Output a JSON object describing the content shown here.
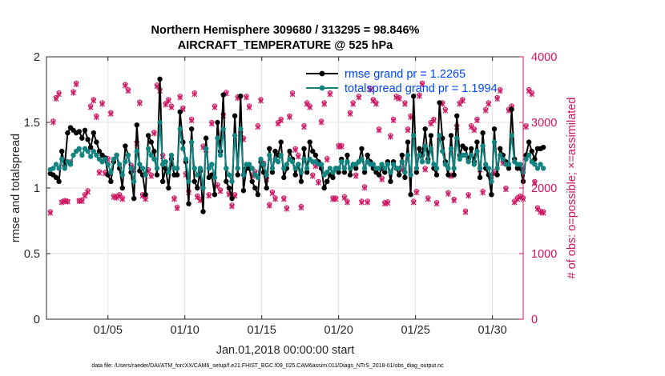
{
  "chart_data": {
    "type": "line",
    "title_line1": "Northern Hemisphere 309680 / 313295 = 98.846%",
    "title_line2": "AIRCRAFT_TEMPERATURE @ 525 hPa",
    "xlabel": "Jan.01,2018 00:00:00 start",
    "ylabel_left": "rmse and totalspread",
    "ylabel_right": "# of obs: o=possible; ×=assimilated",
    "footer": "data file: /Users/raeder/DAI/ATM_forcXX/CAM6_setup/f.e21.FHIST_BGC.f09_025.CAM6assim.011/Diags_NTrS_2018-01/obs_diag_output.nc",
    "xlim": [
      1.0,
      32.0
    ],
    "ylim_left": [
      0,
      2
    ],
    "ylim_right": [
      0,
      4000
    ],
    "x_ticks": [
      5,
      10,
      15,
      20,
      25,
      30
    ],
    "x_tick_labels": [
      "01/05",
      "01/10",
      "01/15",
      "01/20",
      "01/25",
      "01/30"
    ],
    "y_ticks_left": [
      0,
      0.5,
      1,
      1.5,
      2
    ],
    "y_tick_labels_left": [
      "0",
      "0.5",
      "1",
      "1.5",
      "2"
    ],
    "y_ticks_right": [
      0,
      1000,
      2000,
      3000,
      4000
    ],
    "y_tick_labels_right": [
      "0",
      "1000",
      "2000",
      "3000",
      "4000"
    ],
    "colors": {
      "rmse": "#000000",
      "spread": "#138380",
      "obs": "#cc1461",
      "legend_text": "#0046ff",
      "grid": "#e2e2e2"
    },
    "legend": [
      {
        "key": "rmse",
        "label": "rmse grand pr = 1.2265"
      },
      {
        "key": "spread",
        "label": "totalspread grand pr = 1.1994"
      }
    ],
    "series": [
      {
        "name": "rmse",
        "values": [
          1.11,
          1.1,
          1.08,
          1.05,
          1.28,
          1.17,
          1.42,
          1.46,
          1.44,
          1.42,
          1.43,
          1.38,
          1.44,
          1.37,
          1.31,
          1.42,
          1.35,
          1.28,
          1.25,
          1.23,
          1.1,
          1.05,
          1.2,
          1.25,
          1.15,
          1.0,
          1.32,
          1.25,
          1.12,
          0.92,
          1.48,
          1.13,
          1.1,
          0.95,
          1.4,
          1.35,
          1.28,
          1.1,
          1.83,
          1.05,
          1.15,
          1.0,
          1.22,
          1.1,
          1.1,
          1.58,
          1.35,
          1.2,
          0.88,
          1.45,
          1.05,
          1.0,
          1.13,
          0.82,
          1.38,
          1.08,
          1.1,
          0.95,
          1.5,
          1.28,
          1.71,
          1.05,
          1.0,
          0.92,
          1.55,
          1.1,
          1.7,
          0.98,
          1.15,
          1.15,
          1.05,
          1.0,
          0.95,
          1.2,
          1.12,
          1.0,
          1.3,
          1.12,
          1.28,
          1.25,
          1.35,
          1.08,
          1.15,
          1.28,
          1.22,
          1.1,
          1.18,
          1.05,
          1.3,
          1.12,
          1.35,
          1.28,
          1.25,
          1.2,
          1.15,
          1.0,
          1.05,
          1.1,
          1.08,
          1.15,
          1.12,
          1.22,
          1.12,
          1.25,
          1.1,
          1.18,
          1.15,
          1.2,
          1.3,
          1.12,
          1.25,
          1.2,
          1.15,
          1.12,
          1.1,
          1.15,
          1.12,
          1.2,
          1.05,
          1.2,
          1.15,
          1.1,
          1.25,
          1.08,
          1.35,
          0.95,
          1.7,
          1.12,
          1.3,
          1.25,
          1.45,
          1.22,
          1.4,
          1.15,
          1.1,
          1.65,
          1.38,
          1.2,
          1.1,
          1.4,
          1.1,
          1.55,
          1.25,
          1.32,
          1.3,
          1.22,
          1.3,
          1.2,
          1.35,
          1.08,
          1.42,
          1.15,
          1.1,
          0.95,
          1.45,
          1.1,
          1.3,
          1.25,
          1.2,
          1.15,
          1.6,
          1.22,
          1.15,
          1.15,
          1.05,
          1.25,
          1.35,
          1.28,
          1.22,
          1.3,
          1.3,
          1.31
        ]
      },
      {
        "name": "totalspread",
        "values": [
          1.14,
          1.15,
          1.18,
          1.15,
          1.22,
          1.15,
          1.2,
          1.18,
          1.25,
          1.28,
          1.3,
          1.25,
          1.3,
          1.28,
          1.24,
          1.28,
          1.25,
          1.22,
          1.2,
          1.22,
          1.18,
          1.12,
          1.22,
          1.25,
          1.18,
          1.1,
          1.2,
          1.25,
          1.15,
          1.05,
          1.28,
          1.18,
          1.15,
          1.1,
          1.3,
          1.25,
          1.22,
          1.15,
          1.5,
          1.18,
          1.2,
          1.12,
          1.25,
          1.15,
          1.15,
          1.45,
          1.3,
          1.22,
          1.05,
          1.35,
          1.15,
          1.1,
          1.15,
          1.0,
          1.3,
          1.15,
          1.18,
          1.08,
          1.38,
          1.25,
          1.45,
          1.15,
          1.1,
          1.05,
          1.4,
          1.15,
          1.45,
          1.1,
          1.18,
          1.18,
          1.15,
          1.1,
          1.08,
          1.22,
          1.18,
          1.1,
          1.25,
          1.15,
          1.22,
          1.2,
          1.25,
          1.15,
          1.18,
          1.22,
          1.2,
          1.15,
          1.18,
          1.12,
          1.22,
          1.15,
          1.22,
          1.2,
          1.2,
          1.18,
          1.18,
          1.1,
          1.12,
          1.15,
          1.12,
          1.15,
          1.15,
          1.2,
          1.15,
          1.2,
          1.15,
          1.18,
          1.18,
          1.2,
          1.22,
          1.15,
          1.2,
          1.18,
          1.18,
          1.15,
          1.15,
          1.18,
          1.15,
          1.18,
          1.12,
          1.18,
          1.15,
          1.15,
          1.2,
          1.12,
          1.25,
          1.1,
          1.4,
          1.15,
          1.25,
          1.2,
          1.32,
          1.2,
          1.3,
          1.18,
          1.15,
          1.4,
          1.28,
          1.18,
          1.15,
          1.3,
          1.15,
          1.38,
          1.22,
          1.25,
          1.25,
          1.2,
          1.25,
          1.18,
          1.28,
          1.15,
          1.32,
          1.18,
          1.15,
          1.05,
          1.35,
          1.15,
          1.25,
          1.22,
          1.18,
          1.18,
          1.4,
          1.2,
          1.18,
          1.18,
          1.12,
          1.22,
          1.25,
          1.2,
          1.18,
          1.15,
          1.18,
          1.15
        ]
      },
      {
        "name": "obs_possible",
        "values": [
          1640,
          3020,
          3380,
          3450,
          1790,
          1810,
          1800,
          2400,
          3470,
          3600,
          1810,
          1820,
          1900,
          1960,
          3250,
          3350,
          3100,
          2250,
          3300,
          2240,
          2450,
          3150,
          1880,
          1870,
          1900,
          1850,
          3580,
          3500,
          2350,
          2300,
          2700,
          3310,
          1900,
          1850,
          2280,
          2200,
          2850,
          3570,
          3500,
          2500,
          3290,
          3350,
          3250,
          1850,
          1710,
          3400,
          3220,
          2220,
          1950,
          3050,
          3450,
          1880,
          1830,
          2640,
          2600,
          1900,
          3000,
          3250,
          2050,
          1970,
          3120,
          3460,
          1920,
          1740,
          1900,
          3390,
          2850,
          2760,
          3400,
          3250,
          2200,
          2250,
          2950,
          3350,
          2380,
          2150,
          1750,
          1940,
          1850,
          3000,
          3050,
          1850,
          1700,
          3100,
          3450,
          2600,
          2500,
          1720,
          2950,
          3300,
          3250,
          2200,
          2350,
          2100,
          3020,
          3300,
          2450,
          3450,
          1850,
          1850,
          2650,
          2650,
          1870,
          1800,
          3150,
          3300,
          2200,
          3400,
          1800,
          2020,
          1800,
          3520,
          3350,
          3300,
          2900,
          2150,
          1780,
          1790,
          2800,
          3050,
          3400,
          3380,
          2300,
          3300,
          2900,
          3100,
          1800,
          1950,
          3420,
          3600,
          2300,
          1850,
          3000,
          3050,
          1780,
          2800,
          3300,
          3200,
          1930,
          2200,
          1830,
          2950,
          3300,
          3350,
          1650,
          1900,
          2950,
          2900,
          3050,
          2300,
          1950,
          3200,
          3300,
          2200,
          2250,
          3380,
          3500,
          2400,
          2000,
          3200,
          3250,
          1800,
          1850,
          1880,
          1850,
          2950,
          3500,
          3450,
          2100,
          1700,
          1650,
          1640
        ]
      },
      {
        "name": "obs_assimilated",
        "values": [
          1620,
          3000,
          3360,
          3430,
          1780,
          1800,
          1790,
          2380,
          3450,
          3580,
          1800,
          1800,
          1880,
          1940,
          3230,
          3330,
          3080,
          2230,
          3280,
          2220,
          2430,
          3130,
          1860,
          1850,
          1880,
          1830,
          3560,
          3480,
          2330,
          2280,
          2680,
          3290,
          1880,
          1830,
          2260,
          2180,
          2830,
          3550,
          3480,
          2480,
          3270,
          3330,
          3230,
          1830,
          1690,
          3380,
          3200,
          2200,
          1930,
          3030,
          3430,
          1860,
          1810,
          2620,
          2580,
          1880,
          2980,
          3230,
          2030,
          1950,
          3100,
          3440,
          1900,
          1720,
          1880,
          3370,
          2830,
          2740,
          3380,
          3230,
          2180,
          2230,
          2930,
          3330,
          2360,
          2130,
          1730,
          1920,
          1830,
          2980,
          3030,
          1830,
          1680,
          3080,
          3430,
          2580,
          2480,
          1700,
          2930,
          3280,
          3230,
          2180,
          2330,
          2080,
          3000,
          3280,
          2430,
          3430,
          1830,
          1830,
          2630,
          2630,
          1850,
          1780,
          3130,
          3280,
          2180,
          3380,
          1780,
          2000,
          1780,
          3500,
          3330,
          3280,
          2880,
          2130,
          1760,
          1770,
          2780,
          3030,
          3380,
          3360,
          2280,
          3280,
          2880,
          3080,
          1780,
          1930,
          3400,
          3580,
          2280,
          1830,
          2980,
          3030,
          1760,
          2780,
          3280,
          3180,
          1910,
          2180,
          1810,
          2930,
          3280,
          3330,
          1630,
          1880,
          2930,
          2880,
          3030,
          2280,
          1930,
          3180,
          3280,
          2180,
          2230,
          3360,
          3480,
          2380,
          1980,
          3180,
          3230,
          1780,
          1830,
          1860,
          1830,
          2930,
          3480,
          3430,
          2080,
          1680,
          1630,
          1620
        ]
      }
    ]
  }
}
